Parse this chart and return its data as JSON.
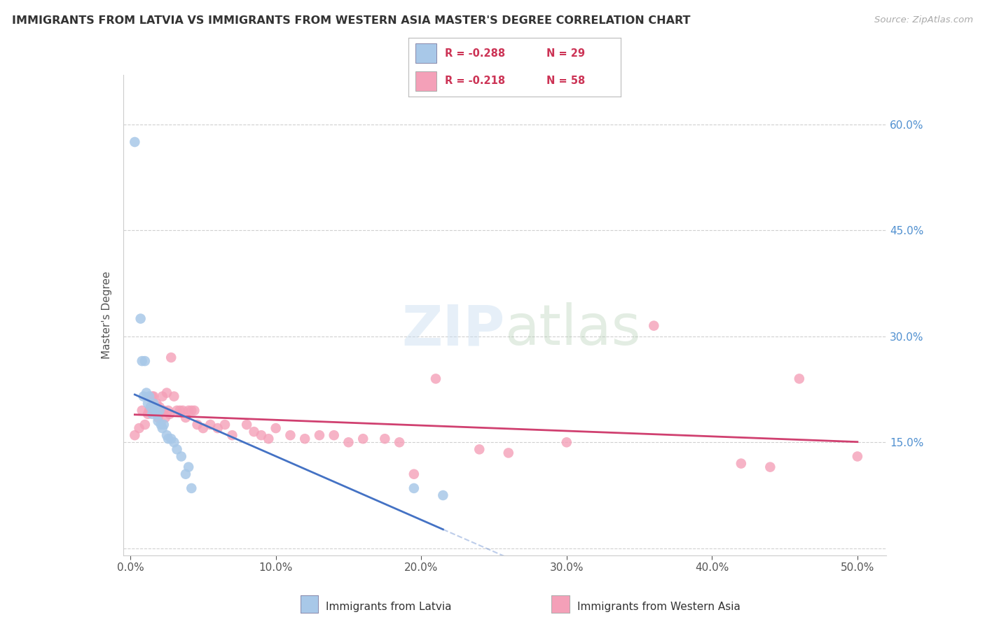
{
  "title": "IMMIGRANTS FROM LATVIA VS IMMIGRANTS FROM WESTERN ASIA MASTER'S DEGREE CORRELATION CHART",
  "source": "Source: ZipAtlas.com",
  "ylabel": "Master's Degree",
  "x_ticks": [
    0.0,
    0.1,
    0.2,
    0.3,
    0.4,
    0.5
  ],
  "x_tick_labels": [
    "0.0%",
    "10.0%",
    "20.0%",
    "30.0%",
    "40.0%",
    "50.0%"
  ],
  "y_ticks": [
    0.0,
    0.15,
    0.3,
    0.45,
    0.6
  ],
  "y_tick_labels_right": [
    "",
    "15.0%",
    "30.0%",
    "45.0%",
    "60.0%"
  ],
  "xlim": [
    -0.005,
    0.52
  ],
  "ylim": [
    -0.01,
    0.67
  ],
  "legend_r1": "-0.288",
  "legend_n1": "29",
  "legend_r2": "-0.218",
  "legend_n2": "58",
  "color_latvia": "#a8c8e8",
  "color_western_asia": "#f4a0b8",
  "color_line_latvia": "#4472c4",
  "color_line_western_asia": "#d04070",
  "label_latvia": "Immigrants from Latvia",
  "label_western_asia": "Immigrants from Western Asia",
  "latvia_x": [
    0.003,
    0.007,
    0.008,
    0.009,
    0.01,
    0.011,
    0.012,
    0.013,
    0.014,
    0.015,
    0.016,
    0.017,
    0.018,
    0.019,
    0.02,
    0.021,
    0.022,
    0.023,
    0.025,
    0.026,
    0.028,
    0.03,
    0.032,
    0.035,
    0.038,
    0.04,
    0.042,
    0.195,
    0.215
  ],
  "latvia_y": [
    0.575,
    0.325,
    0.265,
    0.215,
    0.265,
    0.22,
    0.205,
    0.215,
    0.2,
    0.19,
    0.205,
    0.2,
    0.19,
    0.18,
    0.195,
    0.175,
    0.17,
    0.175,
    0.16,
    0.155,
    0.155,
    0.15,
    0.14,
    0.13,
    0.105,
    0.115,
    0.085,
    0.085,
    0.075
  ],
  "western_asia_x": [
    0.003,
    0.006,
    0.008,
    0.01,
    0.012,
    0.013,
    0.014,
    0.015,
    0.016,
    0.017,
    0.018,
    0.019,
    0.02,
    0.021,
    0.022,
    0.023,
    0.024,
    0.025,
    0.026,
    0.027,
    0.028,
    0.03,
    0.032,
    0.034,
    0.036,
    0.038,
    0.04,
    0.042,
    0.044,
    0.046,
    0.05,
    0.055,
    0.06,
    0.065,
    0.07,
    0.08,
    0.085,
    0.09,
    0.095,
    0.1,
    0.11,
    0.12,
    0.13,
    0.14,
    0.15,
    0.16,
    0.175,
    0.185,
    0.195,
    0.21,
    0.24,
    0.26,
    0.3,
    0.36,
    0.42,
    0.44,
    0.46,
    0.5
  ],
  "western_asia_y": [
    0.16,
    0.17,
    0.195,
    0.175,
    0.19,
    0.195,
    0.2,
    0.215,
    0.215,
    0.195,
    0.205,
    0.185,
    0.2,
    0.195,
    0.215,
    0.195,
    0.185,
    0.22,
    0.195,
    0.19,
    0.27,
    0.215,
    0.195,
    0.195,
    0.195,
    0.185,
    0.195,
    0.195,
    0.195,
    0.175,
    0.17,
    0.175,
    0.17,
    0.175,
    0.16,
    0.175,
    0.165,
    0.16,
    0.155,
    0.17,
    0.16,
    0.155,
    0.16,
    0.16,
    0.15,
    0.155,
    0.155,
    0.15,
    0.105,
    0.24,
    0.14,
    0.135,
    0.15,
    0.315,
    0.12,
    0.115,
    0.24,
    0.13
  ]
}
